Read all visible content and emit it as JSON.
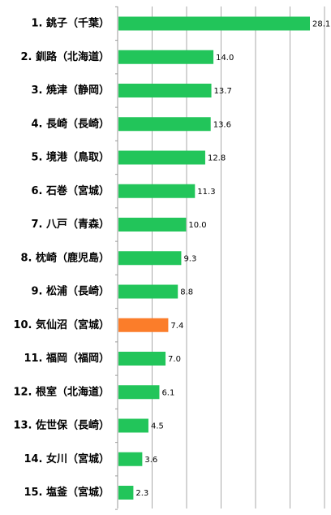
{
  "chart_data": {
    "type": "bar",
    "orientation": "horizontal",
    "categories": [
      "1. 銚子（千葉）",
      "2. 釧路（北海道）",
      "3. 焼津（静岡）",
      "4. 長崎（長崎）",
      "5. 境港（鳥取）",
      "6. 石巻（宮城）",
      "7. 八戸（青森）",
      "8. 枕崎（鹿児島）",
      "9. 松浦（長崎）",
      "10. 気仙沼（宮城）",
      "11. 福岡（福岡）",
      "12. 根室（北海道）",
      "13. 佐世保（長崎）",
      "14. 女川（宮城）",
      "15. 塩釜（宮城）"
    ],
    "values": [
      28.1,
      14.0,
      13.7,
      13.6,
      12.8,
      11.3,
      10.0,
      9.3,
      8.8,
      7.4,
      7.0,
      6.1,
      4.5,
      3.6,
      2.3
    ],
    "value_labels": [
      "28.1",
      "14.0",
      "13.7",
      "13.6",
      "12.8",
      "11.3",
      "10.0",
      "9.3",
      "8.8",
      "7.4",
      "7.0",
      "6.1",
      "4.5",
      "3.6",
      "2.3"
    ],
    "highlight_index": 9,
    "colors": {
      "bar": "#22c55a",
      "highlight": "#fb7d2a",
      "grid": "#aaaaaa",
      "axis": "#999999",
      "background": "#ffffff",
      "text": "#000000"
    },
    "xlim": [
      0,
      28.1
    ],
    "grid": true,
    "grid_lines": 7,
    "title": "",
    "xlabel": "",
    "ylabel": ""
  }
}
